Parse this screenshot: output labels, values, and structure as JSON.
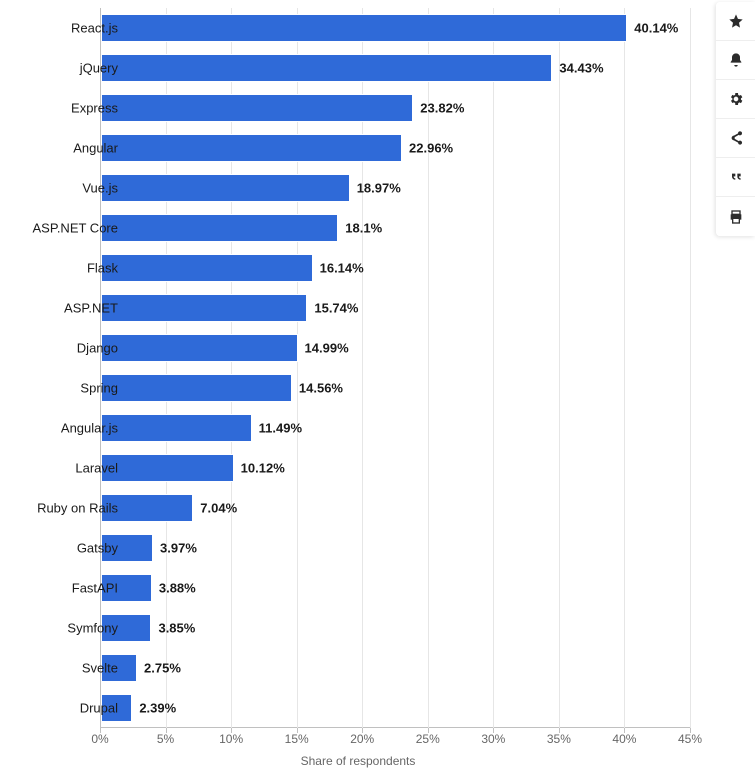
{
  "chart": {
    "type": "bar-horizontal",
    "x_axis": {
      "title": "Share of respondents",
      "min": 0,
      "max": 45,
      "tick_step": 5,
      "ticks": [
        0,
        5,
        10,
        15,
        20,
        25,
        30,
        35,
        40,
        45
      ],
      "tick_suffix": "%",
      "title_color": "#666666",
      "tick_color": "#666666",
      "tick_fontsize": 12
    },
    "bar_color": "#2f6ad8",
    "bar_border_color": "#ffffff",
    "grid_color": "#e6e6e6",
    "axis_line_color": "#c0c0c0",
    "background_color": "#ffffff",
    "label_fontsize": 13,
    "label_color": "#1a1a1a",
    "value_fontsize": 13,
    "value_fontweight": "700",
    "value_color": "#1a1a1a",
    "categories": [
      "React.js",
      "jQuery",
      "Express",
      "Angular",
      "Vue.js",
      "ASP.NET Core",
      "Flask",
      "ASP.NET",
      "Django",
      "Spring",
      "Angular.js",
      "Laravel",
      "Ruby on Rails",
      "Gatsby",
      "FastAPI",
      "Symfony",
      "Svelte",
      "Drupal"
    ],
    "values": [
      40.14,
      34.43,
      23.82,
      22.96,
      18.97,
      18.1,
      16.14,
      15.74,
      14.99,
      14.56,
      11.49,
      10.12,
      7.04,
      3.97,
      3.88,
      3.85,
      2.75,
      2.39
    ],
    "value_labels": [
      "40.14%",
      "34.43%",
      "23.82%",
      "22.96%",
      "18.97%",
      "18.1%",
      "16.14%",
      "15.74%",
      "14.99%",
      "14.56%",
      "11.49%",
      "10.12%",
      "7.04%",
      "3.97%",
      "3.88%",
      "3.85%",
      "2.75%",
      "2.39%"
    ]
  },
  "toolbar": {
    "icons": [
      "star",
      "bell",
      "gear",
      "share",
      "quote",
      "print"
    ]
  }
}
